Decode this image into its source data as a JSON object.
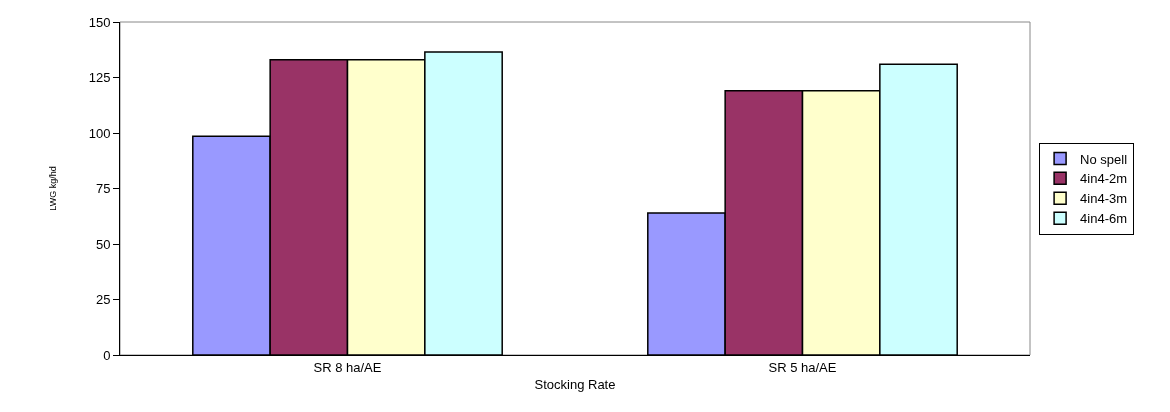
{
  "chart_data": {
    "type": "bar",
    "xlabel": "Stocking Rate",
    "ylabel": "LWG kg/hd",
    "categories": [
      "SR 8 ha/AE",
      "SR 5 ha/AE"
    ],
    "series": [
      {
        "name": "No spell",
        "color": "#9999ff",
        "values": [
          98.5,
          64
        ]
      },
      {
        "name": "4in4-2m",
        "color": "#993366",
        "values": [
          133,
          119
        ]
      },
      {
        "name": "4in4-3m",
        "color": "#ffffcc",
        "values": [
          133,
          119
        ]
      },
      {
        "name": "4in4-6m",
        "color": "#ccffff",
        "values": [
          136.5,
          131
        ]
      }
    ],
    "ylim": [
      0,
      150
    ],
    "yticks": [
      0,
      25,
      50,
      75,
      100,
      125,
      150
    ],
    "grid": false,
    "legend": "right"
  }
}
